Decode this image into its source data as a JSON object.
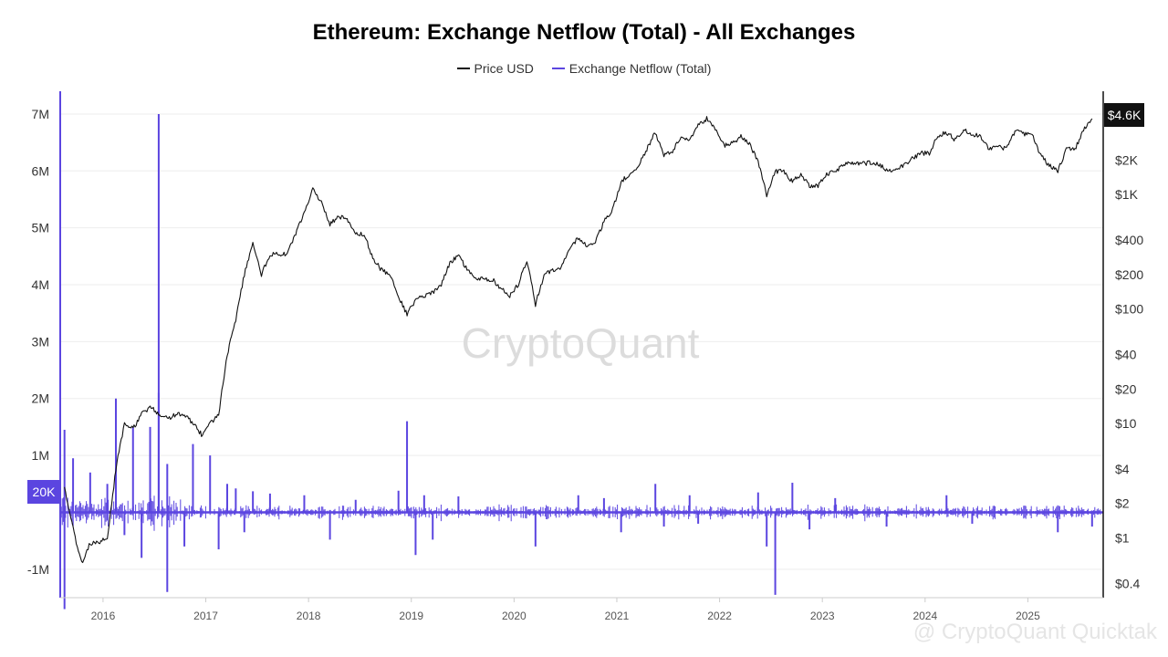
{
  "chart_data": {
    "type": "line",
    "title": "Ethereum: Exchange Netflow (Total) - All Exchanges",
    "legend": {
      "position": "top-center"
    },
    "colors": {
      "price": "#111111",
      "netflow": "#5b45e0",
      "grid": "#eeeeee",
      "badge_price": "#111111",
      "badge_netflow": "#5b45e0"
    },
    "x": {
      "type": "time",
      "range": [
        "2015-08",
        "2025-09"
      ],
      "tick_labels": [
        "2016",
        "2017",
        "2018",
        "2019",
        "2020",
        "2021",
        "2022",
        "2023",
        "2024",
        "2025"
      ]
    },
    "y_left": {
      "label": "",
      "ylim": [
        -1500000,
        7400000
      ],
      "tick_values": [
        -1000000,
        1000000,
        2000000,
        3000000,
        4000000,
        5000000,
        6000000,
        7000000
      ],
      "tick_labels": [
        "-1M",
        "1M",
        "2M",
        "3M",
        "4M",
        "5M",
        "6M",
        "7M"
      ]
    },
    "y_right": {
      "label": "",
      "scale": "log",
      "ylim": [
        0.3,
        8000
      ],
      "tick_values": [
        2000,
        1000,
        400,
        200,
        100,
        40,
        20,
        10,
        4,
        2,
        1,
        0.4
      ],
      "tick_labels": [
        "$2K",
        "$1K",
        "$400",
        "$200",
        "$100",
        "$40",
        "$20",
        "$10",
        "$4",
        "$2",
        "$1",
        "$0.4"
      ]
    },
    "badges": {
      "price": "$4.6K",
      "netflow": "20K"
    },
    "series": [
      {
        "name": "Price USD",
        "axis": "right",
        "points": [
          [
            "2015-08",
            2.8
          ],
          [
            "2015-09",
            1.2
          ],
          [
            "2015-10",
            0.6
          ],
          [
            "2015-11",
            0.9
          ],
          [
            "2015-12",
            0.9
          ],
          [
            "2016-01",
            1.0
          ],
          [
            "2016-02",
            4.0
          ],
          [
            "2016-03",
            10.0
          ],
          [
            "2016-04",
            9.0
          ],
          [
            "2016-05",
            12.0
          ],
          [
            "2016-06",
            14.0
          ],
          [
            "2016-07",
            12.0
          ],
          [
            "2016-08",
            11.0
          ],
          [
            "2016-09",
            12.0
          ],
          [
            "2016-10",
            12.0
          ],
          [
            "2016-11",
            10.0
          ],
          [
            "2016-12",
            8.0
          ],
          [
            "2017-01",
            10.0
          ],
          [
            "2017-02",
            12.0
          ],
          [
            "2017-03",
            40.0
          ],
          [
            "2017-04",
            80.0
          ],
          [
            "2017-05",
            200.0
          ],
          [
            "2017-06",
            380.0
          ],
          [
            "2017-07",
            200.0
          ],
          [
            "2017-08",
            300.0
          ],
          [
            "2017-09",
            300.0
          ],
          [
            "2017-10",
            300.0
          ],
          [
            "2017-11",
            450.0
          ],
          [
            "2017-12",
            700.0
          ],
          [
            "2018-01",
            1100.0
          ],
          [
            "2018-02",
            850.0
          ],
          [
            "2018-03",
            550.0
          ],
          [
            "2018-04",
            650.0
          ],
          [
            "2018-05",
            600.0
          ],
          [
            "2018-06",
            450.0
          ],
          [
            "2018-07",
            450.0
          ],
          [
            "2018-08",
            280.0
          ],
          [
            "2018-09",
            220.0
          ],
          [
            "2018-10",
            200.0
          ],
          [
            "2018-11",
            130.0
          ],
          [
            "2018-12",
            90.0
          ],
          [
            "2019-01",
            120.0
          ],
          [
            "2019-02",
            130.0
          ],
          [
            "2019-03",
            140.0
          ],
          [
            "2019-04",
            165.0
          ],
          [
            "2019-05",
            250.0
          ],
          [
            "2019-06",
            300.0
          ],
          [
            "2019-07",
            220.0
          ],
          [
            "2019-08",
            190.0
          ],
          [
            "2019-09",
            180.0
          ],
          [
            "2019-10",
            180.0
          ],
          [
            "2019-11",
            150.0
          ],
          [
            "2019-12",
            130.0
          ],
          [
            "2020-01",
            165.0
          ],
          [
            "2020-02",
            270.0
          ],
          [
            "2020-03",
            110.0
          ],
          [
            "2020-04",
            200.0
          ],
          [
            "2020-05",
            220.0
          ],
          [
            "2020-06",
            230.0
          ],
          [
            "2020-07",
            330.0
          ],
          [
            "2020-08",
            420.0
          ],
          [
            "2020-09",
            360.0
          ],
          [
            "2020-10",
            390.0
          ],
          [
            "2020-11",
            580.0
          ],
          [
            "2020-12",
            730.0
          ],
          [
            "2021-01",
            1300.0
          ],
          [
            "2021-02",
            1500.0
          ],
          [
            "2021-03",
            1800.0
          ],
          [
            "2021-04",
            2500.0
          ],
          [
            "2021-05",
            3500.0
          ],
          [
            "2021-06",
            2200.0
          ],
          [
            "2021-07",
            2400.0
          ],
          [
            "2021-08",
            3200.0
          ],
          [
            "2021-09",
            3000.0
          ],
          [
            "2021-10",
            4000.0
          ],
          [
            "2021-11",
            4600.0
          ],
          [
            "2021-12",
            3800.0
          ],
          [
            "2022-01",
            2700.0
          ],
          [
            "2022-02",
            2800.0
          ],
          [
            "2022-03",
            3200.0
          ],
          [
            "2022-04",
            2800.0
          ],
          [
            "2022-05",
            1900.0
          ],
          [
            "2022-06",
            1000.0
          ],
          [
            "2022-07",
            1600.0
          ],
          [
            "2022-08",
            1600.0
          ],
          [
            "2022-09",
            1300.0
          ],
          [
            "2022-10",
            1500.0
          ],
          [
            "2022-11",
            1200.0
          ],
          [
            "2022-12",
            1200.0
          ],
          [
            "2023-01",
            1500.0
          ],
          [
            "2023-02",
            1600.0
          ],
          [
            "2023-03",
            1800.0
          ],
          [
            "2023-04",
            1900.0
          ],
          [
            "2023-05",
            1850.0
          ],
          [
            "2023-06",
            1900.0
          ],
          [
            "2023-07",
            1850.0
          ],
          [
            "2023-08",
            1650.0
          ],
          [
            "2023-09",
            1650.0
          ],
          [
            "2023-10",
            1800.0
          ],
          [
            "2023-11",
            2050.0
          ],
          [
            "2023-12",
            2300.0
          ],
          [
            "2024-01",
            2300.0
          ],
          [
            "2024-02",
            3300.0
          ],
          [
            "2024-03",
            3500.0
          ],
          [
            "2024-04",
            3000.0
          ],
          [
            "2024-05",
            3700.0
          ],
          [
            "2024-06",
            3400.0
          ],
          [
            "2024-07",
            3200.0
          ],
          [
            "2024-08",
            2500.0
          ],
          [
            "2024-09",
            2600.0
          ],
          [
            "2024-10",
            2500.0
          ],
          [
            "2024-11",
            3600.0
          ],
          [
            "2024-12",
            3400.0
          ],
          [
            "2025-01",
            3300.0
          ],
          [
            "2025-02",
            2200.0
          ],
          [
            "2025-03",
            1800.0
          ],
          [
            "2025-04",
            1600.0
          ],
          [
            "2025-05",
            2500.0
          ],
          [
            "2025-06",
            2500.0
          ],
          [
            "2025-07",
            3700.0
          ],
          [
            "2025-08",
            4600.0
          ]
        ]
      },
      {
        "name": "Exchange Netflow (Total)",
        "axis": "left",
        "typical_abs_range": [
          0,
          120000
        ],
        "spikes": [
          [
            "2015-08",
            1450000
          ],
          [
            "2015-08",
            -1700000
          ],
          [
            "2015-09",
            950000
          ],
          [
            "2015-11",
            700000
          ],
          [
            "2016-01",
            500000
          ],
          [
            "2016-02",
            2000000
          ],
          [
            "2016-03",
            -400000
          ],
          [
            "2016-04",
            1500000
          ],
          [
            "2016-05",
            -800000
          ],
          [
            "2016-06",
            1500000
          ],
          [
            "2016-07",
            7000000
          ],
          [
            "2016-07",
            2100000
          ],
          [
            "2016-08",
            -1400000
          ],
          [
            "2016-08",
            850000
          ],
          [
            "2016-10",
            -600000
          ],
          [
            "2016-11",
            1200000
          ],
          [
            "2017-01",
            1000000
          ],
          [
            "2017-02",
            -650000
          ],
          [
            "2017-03",
            500000
          ],
          [
            "2017-04",
            420000
          ],
          [
            "2017-05",
            -350000
          ],
          [
            "2017-06",
            370000
          ],
          [
            "2017-08",
            330000
          ],
          [
            "2017-12",
            300000
          ],
          [
            "2018-03",
            -480000
          ],
          [
            "2018-06",
            220000
          ],
          [
            "2018-11",
            380000
          ],
          [
            "2018-12",
            1600000
          ],
          [
            "2019-01",
            -750000
          ],
          [
            "2019-02",
            300000
          ],
          [
            "2019-03",
            -480000
          ],
          [
            "2019-06",
            280000
          ],
          [
            "2020-03",
            -600000
          ],
          [
            "2020-08",
            300000
          ],
          [
            "2020-11",
            250000
          ],
          [
            "2021-01",
            -350000
          ],
          [
            "2021-05",
            500000
          ],
          [
            "2021-06",
            -250000
          ],
          [
            "2021-09",
            300000
          ],
          [
            "2021-10",
            -200000
          ],
          [
            "2022-05",
            350000
          ],
          [
            "2022-06",
            -600000
          ],
          [
            "2022-07",
            -1450000
          ],
          [
            "2022-09",
            520000
          ],
          [
            "2022-11",
            -300000
          ],
          [
            "2023-02",
            250000
          ],
          [
            "2023-08",
            -250000
          ],
          [
            "2024-03",
            300000
          ],
          [
            "2024-06",
            -200000
          ],
          [
            "2025-04",
            -350000
          ],
          [
            "2025-08",
            -250000
          ]
        ]
      }
    ],
    "watermark": "CryptoQuant",
    "credit": "@ CryptoQuant Quicktak"
  }
}
